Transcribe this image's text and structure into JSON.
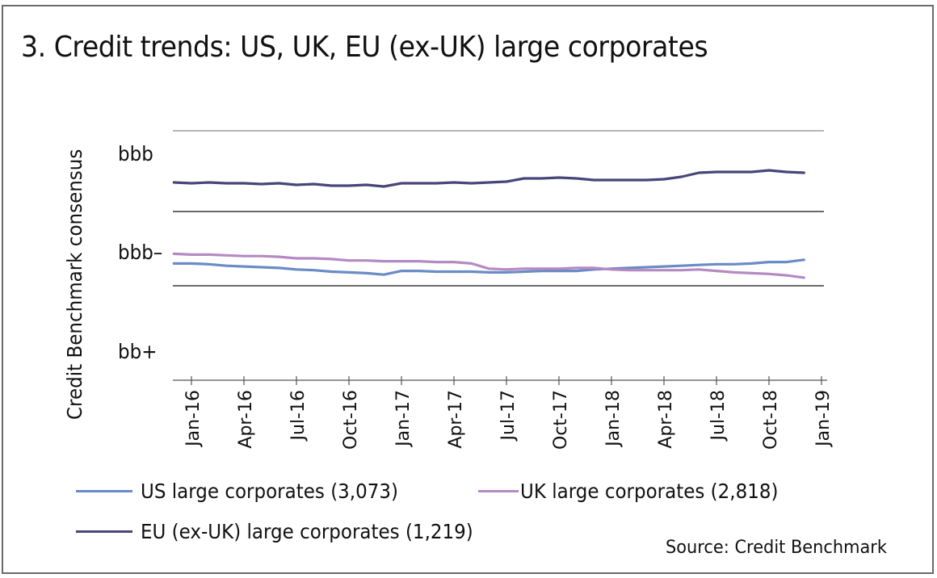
{
  "chart_data": {
    "type": "line",
    "title": "3. Credit trends: US, UK, EU (ex-UK) large corporates",
    "xlabel": "",
    "ylabel": "Credit Benchmark consensus",
    "y_scale_note": "notch scale: bb+ = 1, bbb- = 2, bbb = 3; gridlines at band boundaries",
    "ylim": [
      0.5,
      3.5
    ],
    "y_gridlines": [
      1.5,
      2.5,
      3.5
    ],
    "yticks": [
      {
        "value": 1,
        "label": "bb+"
      },
      {
        "value": 2,
        "label": "bbb–"
      },
      {
        "value": 3,
        "label": "bbb"
      }
    ],
    "xticks": [
      "Jan-16",
      "Apr-16",
      "Jul-16",
      "Oct-16",
      "Jan-17",
      "Apr-17",
      "Jul-17",
      "Oct-17",
      "Jan-18",
      "Apr-18",
      "Jul-18",
      "Oct-18",
      "Jan-19"
    ],
    "x": [
      "Dec-15",
      "Jan-16",
      "Feb-16",
      "Mar-16",
      "Apr-16",
      "May-16",
      "Jun-16",
      "Jul-16",
      "Aug-16",
      "Sep-16",
      "Oct-16",
      "Nov-16",
      "Dec-16",
      "Jan-17",
      "Feb-17",
      "Mar-17",
      "Apr-17",
      "May-17",
      "Jun-17",
      "Jul-17",
      "Aug-17",
      "Sep-17",
      "Oct-17",
      "Nov-17",
      "Dec-17",
      "Jan-18",
      "Feb-18",
      "Mar-18",
      "Apr-18",
      "May-18",
      "Jun-18",
      "Jul-18",
      "Aug-18",
      "Sep-18",
      "Oct-18",
      "Nov-18",
      "Dec-18"
    ],
    "series": [
      {
        "name": "US large corporates (3,073)",
        "color": "#6a8bc6",
        "values": [
          1.8,
          1.8,
          1.79,
          1.77,
          1.76,
          1.75,
          1.74,
          1.72,
          1.71,
          1.69,
          1.68,
          1.67,
          1.65,
          1.7,
          1.7,
          1.69,
          1.69,
          1.69,
          1.68,
          1.68,
          1.69,
          1.7,
          1.7,
          1.7,
          1.72,
          1.73,
          1.74,
          1.75,
          1.76,
          1.77,
          1.78,
          1.79,
          1.79,
          1.8,
          1.82,
          1.82,
          1.85
        ]
      },
      {
        "name": "UK large corporates (2,818)",
        "color": "#b58ac3",
        "values": [
          1.93,
          1.92,
          1.92,
          1.91,
          1.9,
          1.9,
          1.89,
          1.87,
          1.87,
          1.86,
          1.84,
          1.84,
          1.83,
          1.83,
          1.83,
          1.82,
          1.82,
          1.8,
          1.73,
          1.72,
          1.73,
          1.73,
          1.73,
          1.74,
          1.74,
          1.72,
          1.71,
          1.71,
          1.71,
          1.71,
          1.72,
          1.7,
          1.68,
          1.67,
          1.66,
          1.64,
          1.61
        ]
      },
      {
        "name": "EU (ex-UK) large corporates (1,219)",
        "color": "#46467a",
        "values": [
          2.86,
          2.85,
          2.86,
          2.85,
          2.85,
          2.84,
          2.85,
          2.83,
          2.84,
          2.82,
          2.82,
          2.83,
          2.81,
          2.85,
          2.85,
          2.85,
          2.86,
          2.85,
          2.86,
          2.87,
          2.91,
          2.91,
          2.92,
          2.91,
          2.89,
          2.89,
          2.89,
          2.89,
          2.9,
          2.93,
          2.98,
          2.99,
          2.99,
          2.99,
          3.01,
          2.99,
          2.98
        ]
      }
    ],
    "legend": [
      {
        "label": "US large corporates (3,073)",
        "color": "#6a8bc6"
      },
      {
        "label": "UK large corporates (2,818)",
        "color": "#b58ac3"
      },
      {
        "label": "EU (ex-UK) large corporates (1,219)",
        "color": "#46467a"
      }
    ],
    "legend_position": "bottom",
    "source": "Source: Credit Benchmark"
  }
}
